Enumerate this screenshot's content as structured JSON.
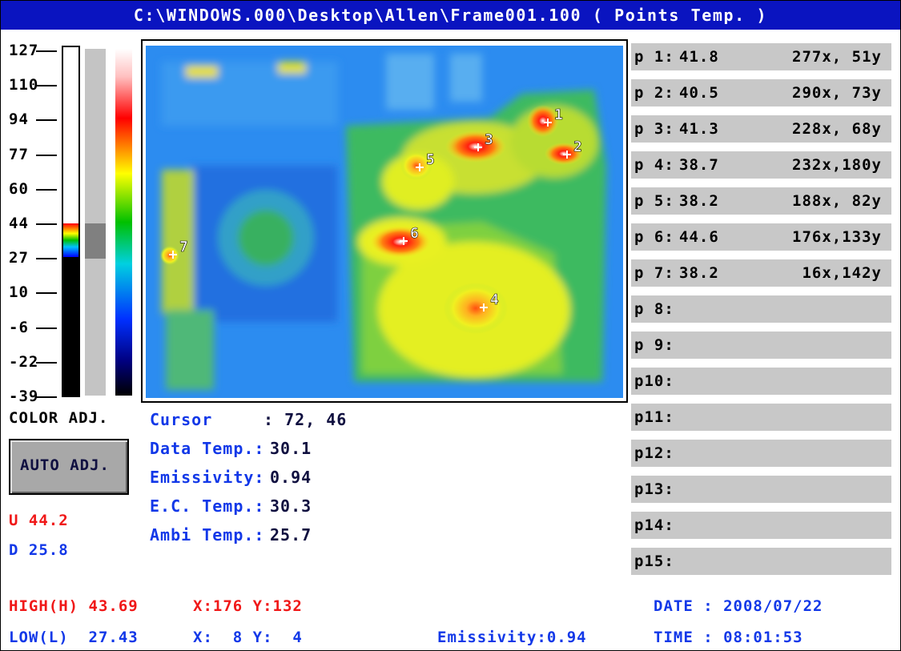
{
  "title": "C:\\WINDOWS.000\\Desktop\\Allen\\Frame001.100 ( Points Temp. )",
  "scale_labels": [
    "127",
    "110",
    "94",
    "77",
    "60",
    "44",
    "27",
    "10",
    "-6",
    "-22",
    "-39"
  ],
  "color_adjust": {
    "label": "COLOR ADJ.",
    "button": "AUTO ADJ.",
    "upper": "U 44.2",
    "lower": "D 25.8"
  },
  "info": [
    {
      "label": "Cursor",
      "value": ": 72, 46"
    },
    {
      "label": "Data Temp.:",
      "value": "30.1"
    },
    {
      "label": "Emissivity:",
      "value": "0.94"
    },
    {
      "label": "E.C. Temp.:",
      "value": "30.3"
    },
    {
      "label": "Ambi Temp.:",
      "value": "25.7"
    }
  ],
  "image_markers": [
    "1",
    "2",
    "3",
    "4",
    "5",
    "6",
    "7"
  ],
  "points": [
    {
      "label": "p 1:",
      "temp": "41.8",
      "position": "277x, 51y"
    },
    {
      "label": "p 2:",
      "temp": "40.5",
      "position": "290x, 73y"
    },
    {
      "label": "p 3:",
      "temp": "41.3",
      "position": "228x, 68y"
    },
    {
      "label": "p 4:",
      "temp": "38.7",
      "position": "232x,180y"
    },
    {
      "label": "p 5:",
      "temp": "38.2",
      "position": "188x, 82y"
    },
    {
      "label": "p 6:",
      "temp": "44.6",
      "position": "176x,133y"
    },
    {
      "label": "p 7:",
      "temp": "38.2",
      "position": "16x,142y"
    },
    {
      "label": "p 8:"
    },
    {
      "label": "p 9:"
    },
    {
      "label": "p10:"
    },
    {
      "label": "p11:"
    },
    {
      "label": "p12:"
    },
    {
      "label": "p13:"
    },
    {
      "label": "p14:"
    },
    {
      "label": "p15:"
    }
  ],
  "status": {
    "high": "HIGH(H) 43.69",
    "high_pos": "X:176 Y:132",
    "low": "LOW(L)  27.43",
    "low_pos": "X:  8 Y:  4",
    "emissivity": "Emissivity:0.94",
    "date": "DATE : 2008/07/22",
    "time": "TIME : 08:01:53"
  }
}
